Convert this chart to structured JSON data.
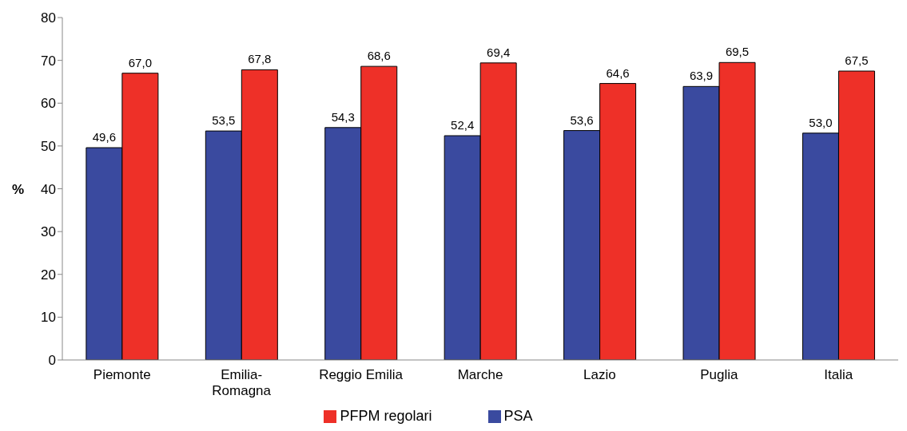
{
  "chart_data": {
    "type": "bar",
    "ylabel": "%",
    "categories": [
      "Piemonte",
      "Emilia-Romagna",
      "Reggio Emilia",
      "Marche",
      "Lazio",
      "Puglia",
      "Italia"
    ],
    "series": [
      {
        "name": "PSA",
        "color": "#3a4a9f",
        "values": [
          49.6,
          53.5,
          54.3,
          52.4,
          53.6,
          63.9,
          53.0
        ],
        "value_labels": [
          "49,6",
          "53,5",
          "54,3",
          "52,4",
          "53,6",
          "63,9",
          "53,0"
        ]
      },
      {
        "name": "PFPM regolari",
        "color": "#ee3028",
        "values": [
          67.0,
          67.8,
          68.6,
          69.4,
          64.6,
          69.5,
          67.5
        ],
        "value_labels": [
          "67,0",
          "67,8",
          "68,6",
          "69,4",
          "64,6",
          "69,5",
          "67,5"
        ]
      }
    ],
    "ylim": [
      0,
      80
    ],
    "yticks": [
      0,
      10,
      20,
      30,
      40,
      50,
      60,
      70,
      80
    ],
    "grid": false,
    "legend": "bottom"
  }
}
